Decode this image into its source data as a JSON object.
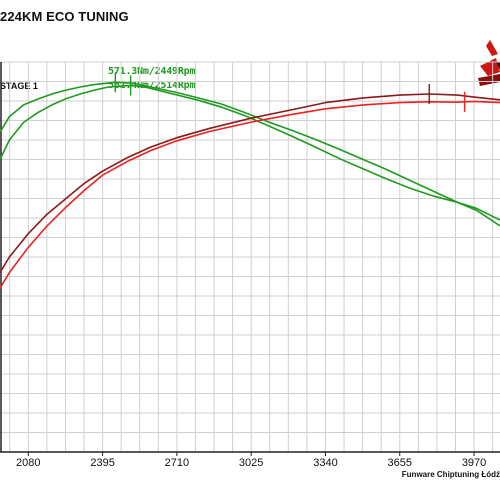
{
  "chart_data": {
    "type": "line",
    "title": "224KM ECO TUNING",
    "legend_blue_label": "",
    "legend_stage_label": "STAGE 1",
    "xlabel": "",
    "ylabel": "",
    "xlim": [
      1960,
      4080
    ],
    "ylim": [
      0,
      100
    ],
    "x_ticks": [
      2080,
      2395,
      2710,
      3025,
      3340,
      3655,
      3970
    ],
    "x_tick_labels": [
      "2080",
      "2395",
      "2710",
      "3025",
      "3340",
      "3655",
      "3970"
    ],
    "grid": true,
    "annotations": [
      {
        "text": "571.3Nm/2449Rpm",
        "x": 2449
      },
      {
        "text": "562.4Nm/2514Rpm",
        "x": 2514
      }
    ],
    "series": [
      {
        "color": "#1f9a1f",
        "x": [
          1960,
          2000,
          2060,
          2120,
          2180,
          2240,
          2300,
          2360,
          2420,
          2449,
          2520,
          2600,
          2700,
          2800,
          2900,
          3000,
          3100,
          3200,
          3300,
          3400,
          3500,
          3600,
          3700,
          3800,
          3900,
          3980,
          4080
        ],
        "y": [
          82,
          86,
          89,
          90.5,
          91.8,
          92.8,
          93.6,
          94.2,
          94.6,
          94.8,
          94.6,
          93.6,
          92.3,
          90.8,
          89.2,
          87.0,
          84.6,
          82.4,
          80.1,
          77.6,
          75.0,
          72.4,
          69.6,
          66.8,
          64.0,
          62.0,
          58.0
        ]
      },
      {
        "color": "#1f9a1f",
        "x": [
          1960,
          2000,
          2060,
          2120,
          2180,
          2240,
          2300,
          2360,
          2420,
          2514,
          2580,
          2700,
          2800,
          2900,
          3000,
          3100,
          3200,
          3300,
          3400,
          3500,
          3600,
          3700,
          3800,
          3900,
          3980,
          4080
        ],
        "y": [
          75,
          80,
          84.5,
          87.0,
          89.0,
          90.6,
          91.8,
          92.8,
          93.6,
          94.0,
          93.5,
          91.7,
          90.2,
          88.4,
          86.2,
          83.6,
          80.9,
          78.1,
          75.2,
          72.6,
          70.0,
          67.6,
          65.6,
          64.0,
          62.5,
          59.5
        ]
      },
      {
        "color": "#8b1a1a",
        "x": [
          1960,
          2000,
          2080,
          2160,
          2240,
          2320,
          2395,
          2500,
          2600,
          2710,
          2850,
          3025,
          3200,
          3340,
          3500,
          3655,
          3780,
          3900,
          3970,
          4080
        ],
        "y": [
          46,
          50,
          56,
          61,
          65,
          69,
          72,
          75.5,
          78.2,
          80.6,
          83.0,
          85.6,
          87.8,
          89.6,
          90.8,
          91.5,
          91.8,
          91.5,
          91.0,
          90.3
        ]
      },
      {
        "color": "#ee2222",
        "x": [
          1960,
          2000,
          2080,
          2160,
          2240,
          2320,
          2395,
          2500,
          2600,
          2710,
          2850,
          3025,
          3200,
          3340,
          3500,
          3655,
          3780,
          3900,
          3970,
          4080
        ],
        "y": [
          42,
          46,
          52.5,
          58.0,
          62.8,
          67.2,
          71.0,
          74.5,
          77.3,
          79.8,
          82.2,
          84.6,
          86.6,
          88.0,
          89.0,
          89.6,
          89.8,
          89.7,
          89.9,
          89.6
        ]
      }
    ],
    "markers": [
      {
        "series": 0,
        "x": 2449
      },
      {
        "series": 1,
        "x": 2514
      },
      {
        "series": 2,
        "x": 3780
      },
      {
        "series": 3,
        "x": 3930
      }
    ]
  },
  "footer": "Funware Chiptuning Łódź",
  "colors": {
    "grid": "#cfcfcf",
    "axis": "#222222"
  }
}
